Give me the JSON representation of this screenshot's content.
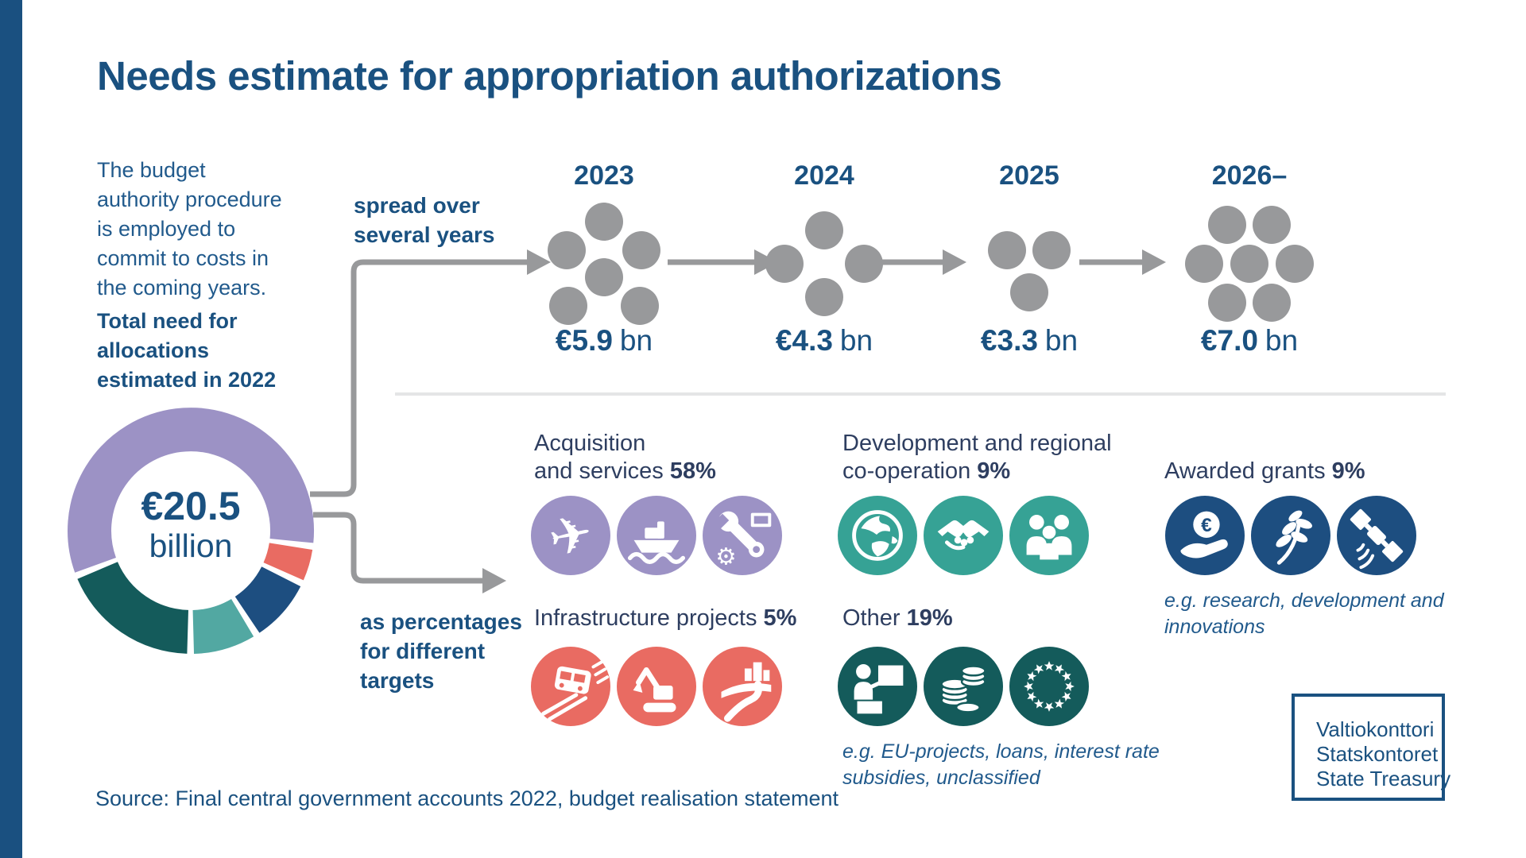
{
  "title": "Needs estimate for appropriation authorizations",
  "intro": {
    "lines": [
      "The budget",
      "authority procedure",
      "is employed to",
      "commit to costs in",
      "the coming years."
    ],
    "bold_lines": [
      "Total need for",
      "allocations",
      "estimated in 2022"
    ]
  },
  "flow": {
    "spread_lines": [
      "spread over",
      "several years"
    ],
    "target_lines": [
      "as percentages",
      "for different",
      "targets"
    ]
  },
  "donut": {
    "value": "€20.5",
    "unit": "billion"
  },
  "years": [
    {
      "label": "2023",
      "amount": "€5.9",
      "unit": "bn",
      "dots": 6
    },
    {
      "label": "2024",
      "amount": "€4.3",
      "unit": "bn",
      "dots": 4
    },
    {
      "label": "2025",
      "amount": "€3.3",
      "unit": "bn",
      "dots": 3
    },
    {
      "label": "2026–",
      "amount": "€7.0",
      "unit": "bn",
      "dots": 7
    }
  ],
  "categories": [
    {
      "line1": "Acquisition",
      "line2": "and services",
      "pct": "58%",
      "icons": [
        "airplane",
        "ship",
        "tools"
      ],
      "color": "#9c92c5"
    },
    {
      "line1": "Development and regional",
      "line2": "co-operation",
      "pct": "9%",
      "icons": [
        "globe",
        "handshake",
        "people"
      ],
      "color": "#36a295"
    },
    {
      "line1": "Awarded grants",
      "pct": "9%",
      "icons": [
        "hand-euro",
        "plant",
        "satellite"
      ],
      "color": "#1d4e80",
      "note1": "e.g. research, development and",
      "note2": "innovations"
    },
    {
      "line1": "Infrastructure projects",
      "pct": "5%",
      "icons": [
        "train",
        "excavator",
        "road"
      ],
      "color": "#e96b62"
    },
    {
      "line1": "Other",
      "pct": "19%",
      "icons": [
        "teacher",
        "coins",
        "eu-stars"
      ],
      "color": "#145b5b",
      "note1": "e.g. EU-projects, loans, interest rate",
      "note2": "subsidies, unclassified"
    }
  ],
  "glyphs": {
    "airplane": "✈",
    "gear": "⚙",
    "euro": "€"
  },
  "source": "Source: Final central government accounts 2022, budget realisation statement",
  "logo": {
    "line1": "Valtiokonttori",
    "line2": "Statskontoret",
    "line3": "State Treasury"
  },
  "chart_data": [
    {
      "type": "pie",
      "donut": true,
      "title": "Total need for allocations estimated in 2022",
      "center_label": "€20.5 billion",
      "labels": [
        "Acquisition and services",
        "Infrastructure projects",
        "Awarded grants",
        "Development and regional co-operation",
        "Other"
      ],
      "values": [
        58,
        5,
        9,
        9,
        19
      ],
      "unit": "%",
      "colors": [
        "#9c92c5",
        "#e96b62",
        "#1d4e80",
        "#52a8a2",
        "#145b5b"
      ],
      "start_angle_deg": 248.5
    },
    {
      "type": "bar",
      "title": "Needs estimate spread over several years",
      "categories": [
        "2023",
        "2024",
        "2025",
        "2026–"
      ],
      "values": [
        5.9,
        4.3,
        3.3,
        7.0
      ],
      "unit": "€bn",
      "dot_counts": [
        6,
        4,
        3,
        7
      ],
      "dot_color": "#98999b"
    }
  ]
}
